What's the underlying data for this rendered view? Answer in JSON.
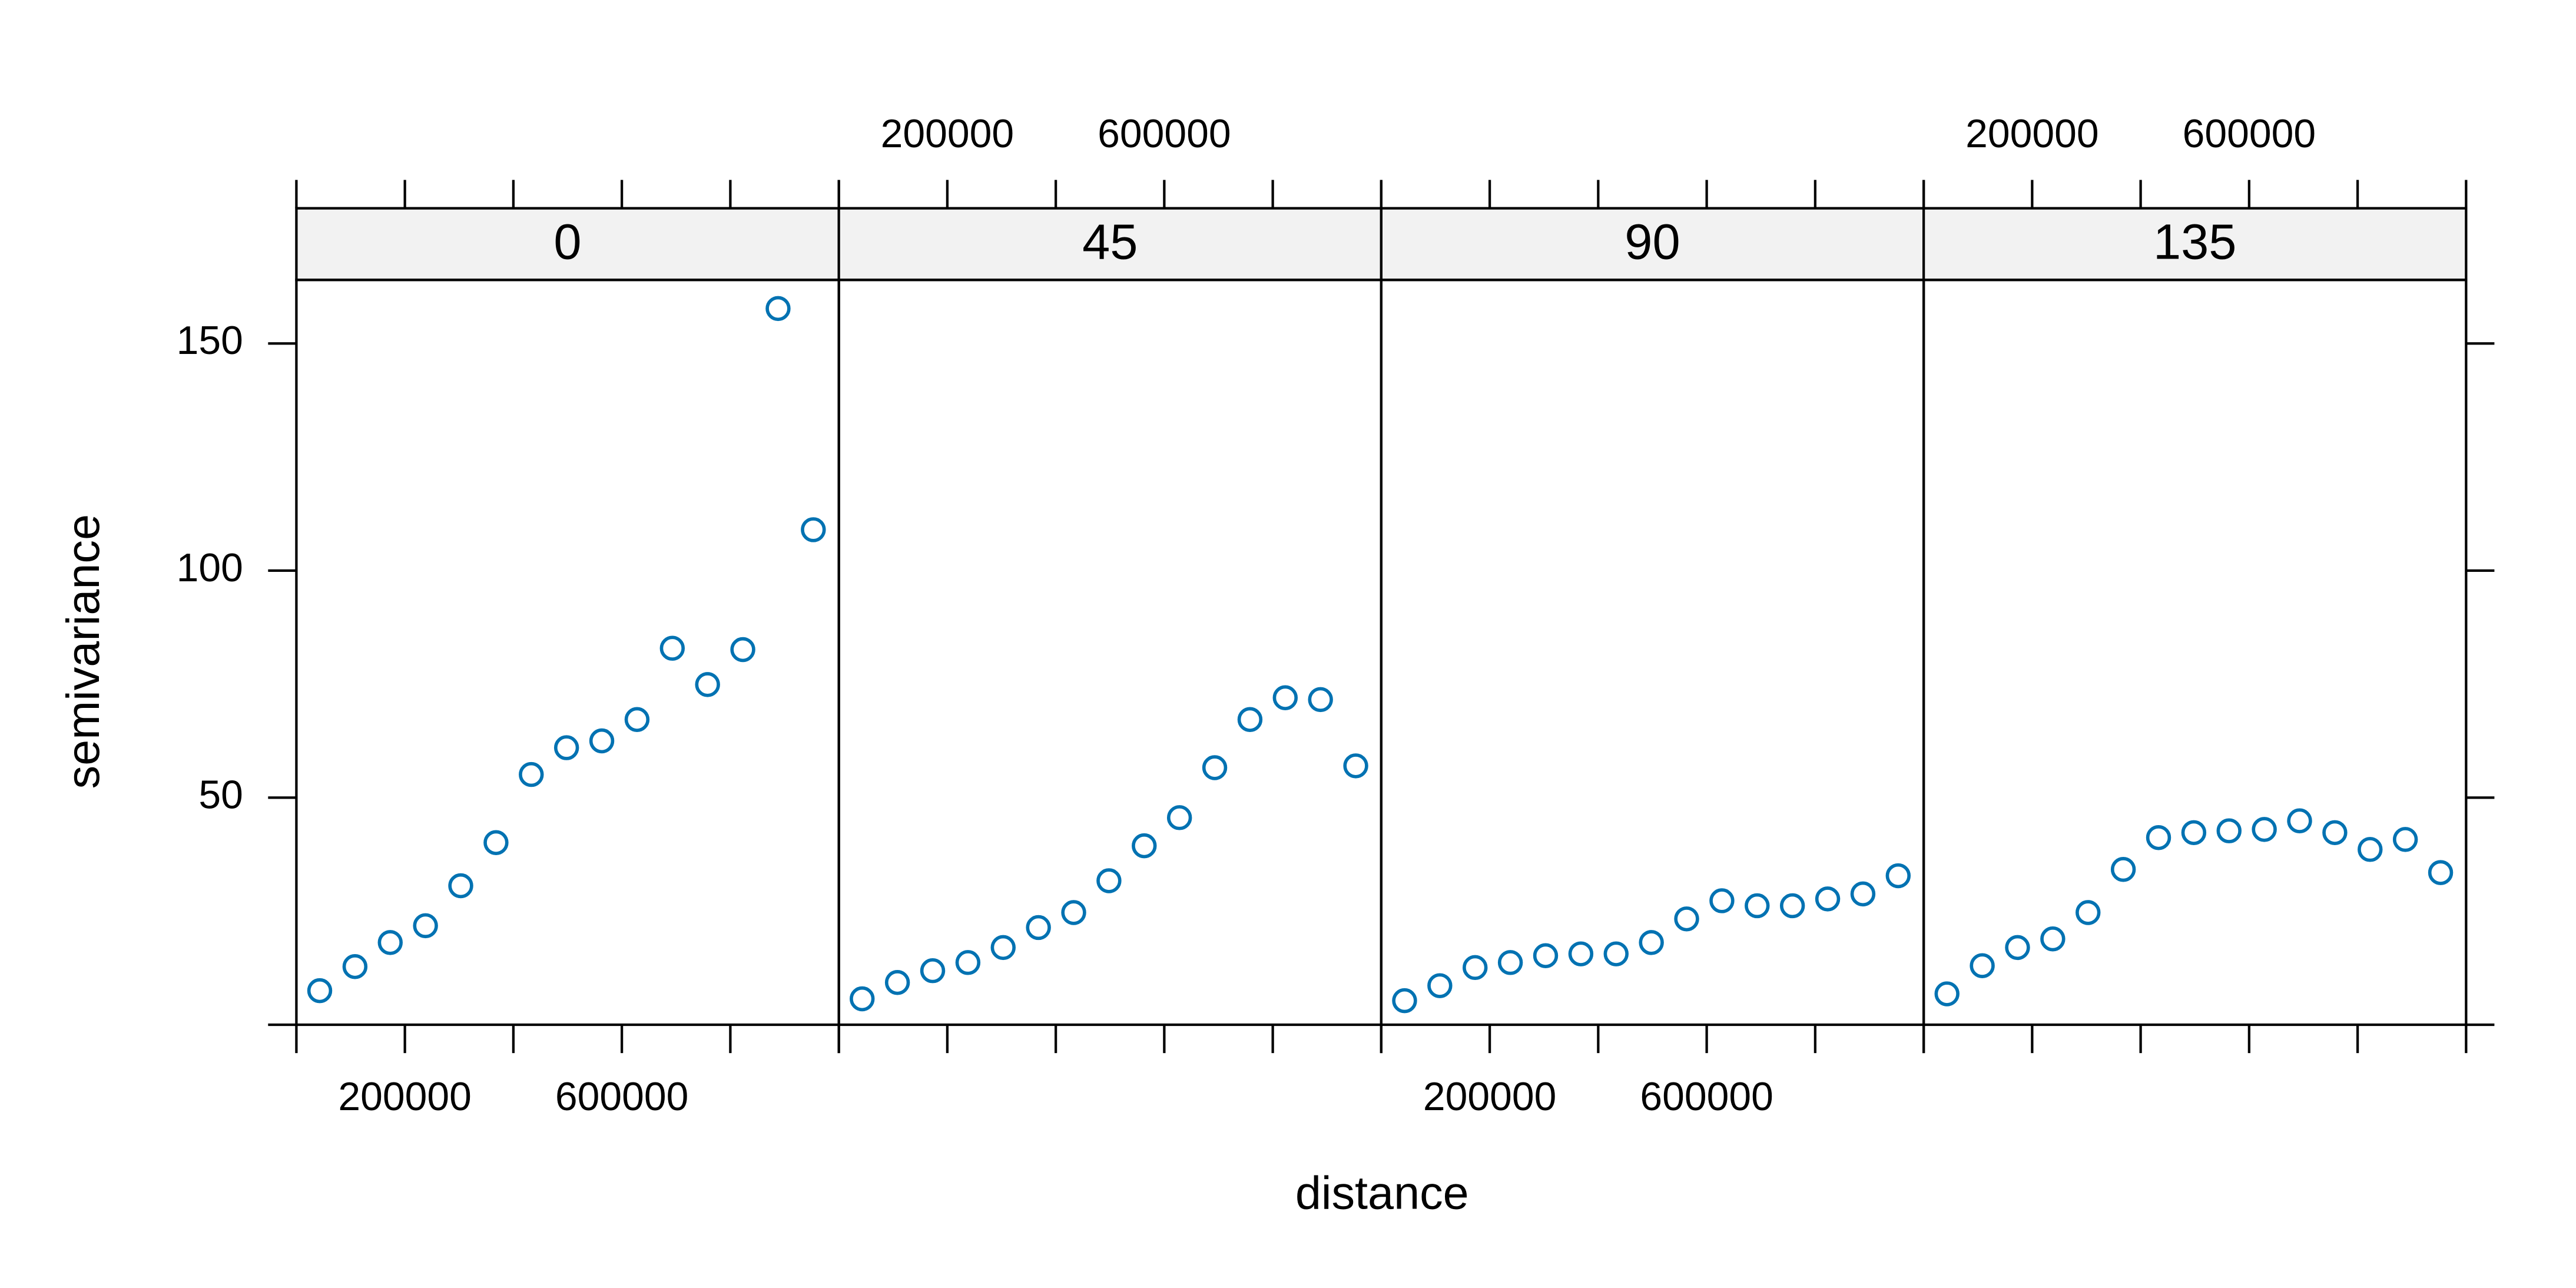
{
  "chart_data": {
    "type": "scatter",
    "xlabel": "distance",
    "ylabel": "semivariance",
    "color": "#0072b2",
    "xlim": [
      0,
      1000000
    ],
    "ylim": [
      0,
      164
    ],
    "xticks": [
      200000,
      600000
    ],
    "xticks_unlabeled": [
      0,
      400000,
      800000,
      1000000
    ],
    "yticks": [
      50,
      100,
      150
    ],
    "panels": [
      {
        "label": "0",
        "x": [
          43000,
          108000,
          173000,
          238000,
          303000,
          368000,
          433000,
          498000,
          563000,
          628000,
          693000,
          758000,
          823000,
          888000,
          953000
        ],
        "values": [
          7.5,
          12.8,
          18.1,
          21.8,
          30.6,
          40.1,
          55.1,
          61,
          62.5,
          67.2,
          82.9,
          74.9,
          82.6,
          157.7,
          109
        ]
      },
      {
        "label": "45",
        "x": [
          43000,
          108000,
          173000,
          238000,
          303000,
          368000,
          433000,
          498000,
          563000,
          628000,
          693000,
          758000,
          823000,
          888000,
          953000
        ],
        "values": [
          5.7,
          9.3,
          11.9,
          13.7,
          17,
          21.4,
          24.7,
          31.7,
          39.4,
          45.6,
          56.6,
          67.2,
          72,
          71.6,
          57
        ]
      },
      {
        "label": "90",
        "x": [
          43000,
          108000,
          173000,
          238000,
          303000,
          368000,
          433000,
          498000,
          563000,
          628000,
          693000,
          758000,
          823000,
          888000,
          953000
        ],
        "values": [
          5.3,
          8.6,
          12.6,
          13.7,
          15.2,
          15.6,
          15.6,
          18.1,
          23.3,
          27.3,
          26.2,
          26.2,
          27.7,
          28.8,
          32.8
        ]
      },
      {
        "label": "135",
        "x": [
          43000,
          108000,
          173000,
          238000,
          303000,
          368000,
          433000,
          498000,
          563000,
          628000,
          693000,
          758000,
          823000,
          888000,
          953000
        ],
        "values": [
          6.8,
          13,
          17,
          18.9,
          24.7,
          34.2,
          41.2,
          42.3,
          42.7,
          43,
          44.9,
          42.3,
          38.6,
          40.8,
          33.5
        ]
      }
    ]
  }
}
